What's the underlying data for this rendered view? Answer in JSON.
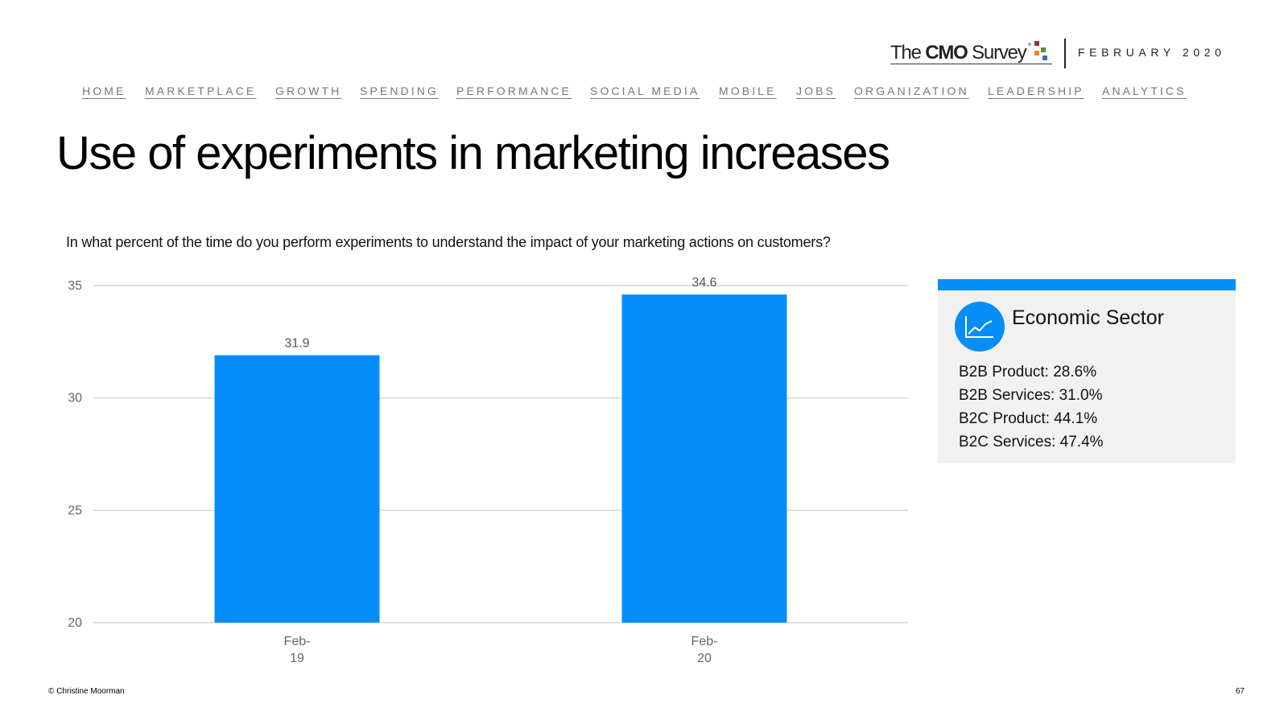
{
  "header": {
    "logo_prefix": "The ",
    "logo_strong": "CMO",
    "logo_suffix": " Survey",
    "date": "FEBRUARY 2020"
  },
  "nav": {
    "items": [
      "HOME",
      "MARKETPLACE",
      "GROWTH",
      "SPENDING",
      "PERFORMANCE",
      "SOCIAL MEDIA",
      "MOBILE",
      "JOBS",
      "ORGANIZATION",
      "LEADERSHIP",
      "ANALYTICS"
    ]
  },
  "title": "Use of experiments in marketing increases",
  "question": "In what percent of the time do you perform experiments to understand the impact of your marketing actions on customers?",
  "chart_data": {
    "type": "bar",
    "title": "In what percent of the time do you perform experiments to understand the impact of your marketing actions on customers?",
    "categories": [
      [
        "Feb-",
        "19"
      ],
      [
        "Feb-",
        "20"
      ]
    ],
    "values": [
      31.9,
      34.6
    ],
    "value_labels": [
      "31.9",
      "34.6"
    ],
    "xlabel": "",
    "ylabel": "",
    "ylim": [
      20,
      35
    ],
    "yticks": [
      20,
      25,
      30,
      35
    ],
    "grid": true,
    "bar_color": "#058ef9"
  },
  "sector_panel": {
    "title": "Economic Sector",
    "icon": "line-chart-icon",
    "accent_color": "#058ef9",
    "items": [
      "B2B Product: 28.6%",
      "B2B Services: 31.0%",
      "B2C Product: 44.1%",
      "B2C Services: 47.4%"
    ]
  },
  "footer": {
    "copyright": "© Christine Moorman",
    "page_number": "67"
  }
}
